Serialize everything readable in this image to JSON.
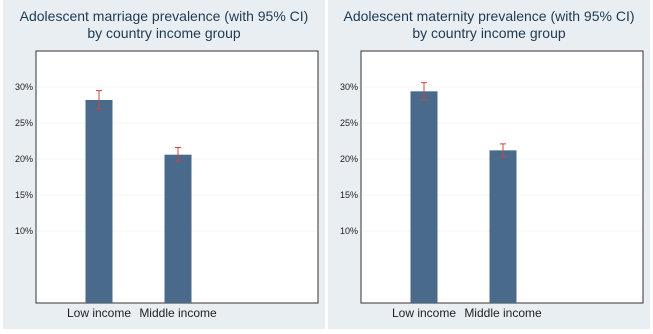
{
  "chart_data": [
    {
      "type": "bar",
      "title": "Adolescent marriage prevalence (with 95% CI)",
      "subtitle": "by country income group",
      "categories": [
        "Low income",
        "Middle income"
      ],
      "values": [
        28.2,
        20.6
      ],
      "ci_lower": [
        27.0,
        19.7
      ],
      "ci_upper": [
        29.5,
        21.6
      ],
      "ylim": [
        0,
        35
      ],
      "yticks": [
        10,
        15,
        20,
        25,
        30
      ],
      "ytick_labels": [
        "10%",
        "15%",
        "20%",
        "25%",
        "30%"
      ],
      "grid": true,
      "colors": {
        "bar": "#4a6a8c",
        "ci": "#c7473f",
        "panel_bg": "#e9eef2"
      }
    },
    {
      "type": "bar",
      "title": "Adolescent maternity prevalence (with 95% CI)",
      "subtitle": "by country income group",
      "categories": [
        "Low income",
        "Middle income"
      ],
      "values": [
        29.4,
        21.2
      ],
      "ci_lower": [
        28.2,
        20.3
      ],
      "ci_upper": [
        30.6,
        22.1
      ],
      "ylim": [
        0,
        35
      ],
      "yticks": [
        10,
        15,
        20,
        25,
        30
      ],
      "ytick_labels": [
        "10%",
        "15%",
        "20%",
        "25%",
        "30%"
      ],
      "grid": true,
      "colors": {
        "bar": "#4a6a8c",
        "ci": "#c7473f",
        "panel_bg": "#e9eef2"
      }
    }
  ]
}
